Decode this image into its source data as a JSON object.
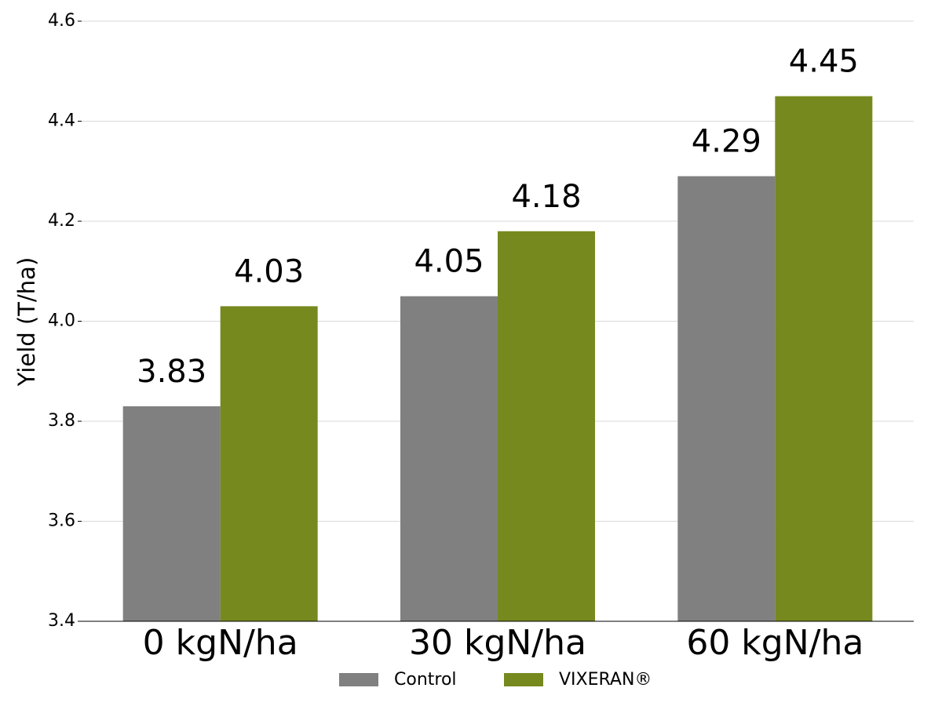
{
  "chart_data": {
    "type": "grouped-bar",
    "y_label": "Yield (T/ha)",
    "categories": [
      "0 kgN/ha",
      "30 kgN/ha",
      "60 kgN/ha"
    ],
    "series": [
      {
        "name": "Control",
        "color": "#808080",
        "values": [
          3.83,
          4.05,
          4.29
        ]
      },
      {
        "name": "VIXERAN®",
        "color": "#76891f",
        "values": [
          4.03,
          4.18,
          4.45
        ]
      }
    ],
    "ylim": [
      3.4,
      4.6
    ],
    "yticks": [
      3.4,
      3.6,
      3.8,
      {
        "value": 4.0,
        "label": "4.0"
      },
      4.2,
      4.4,
      4.6
    ],
    "grid": true,
    "legend": "bottom"
  }
}
